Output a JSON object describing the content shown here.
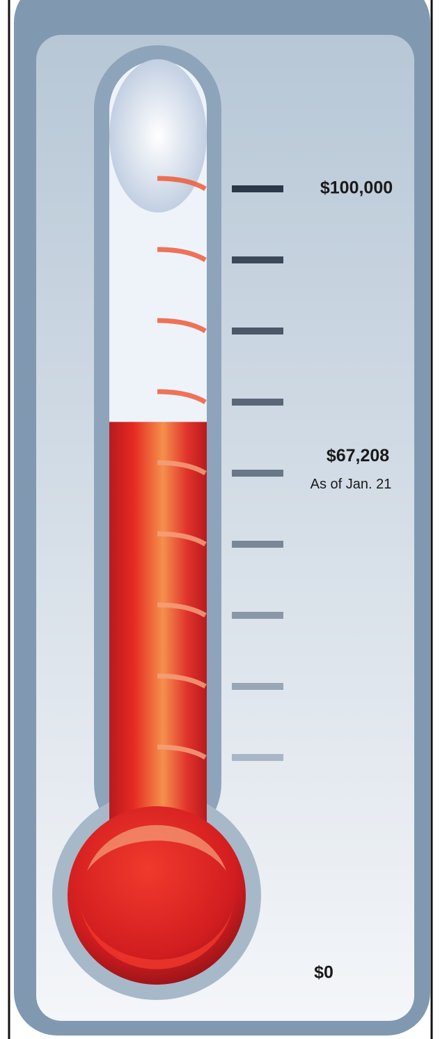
{
  "chart_data": {
    "type": "thermometer",
    "values": [
      67208
    ],
    "value_labels": [
      "$67,208"
    ],
    "annotation": "As of Jan. 21",
    "color": "#e0201f",
    "ylim": [
      0,
      100000
    ],
    "yticks": [
      {
        "value": 100000,
        "label": "$100,000"
      },
      {
        "value": 0,
        "label": "$0"
      }
    ],
    "minor_ticks": [
      100000,
      90000,
      80000,
      70000,
      60000,
      50000,
      40000,
      30000,
      20000
    ]
  }
}
